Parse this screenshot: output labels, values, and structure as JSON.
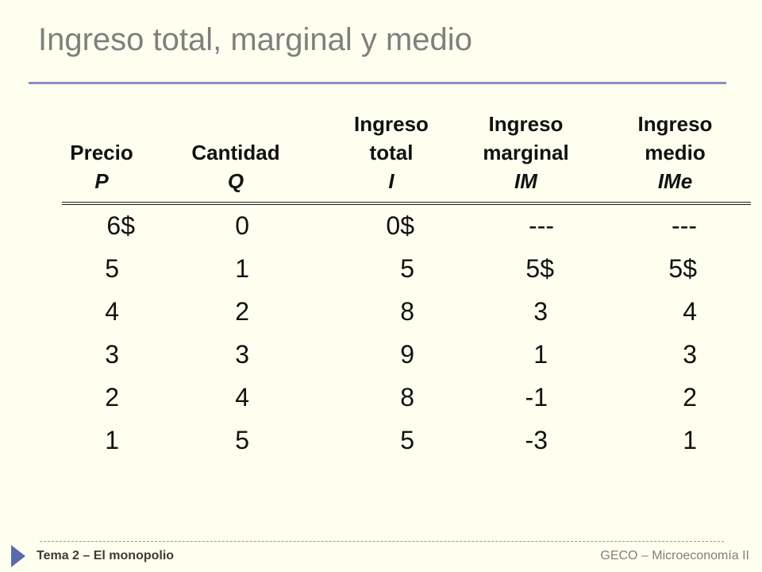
{
  "slide": {
    "title": "Ingreso total, marginal y medio",
    "footer_left": "Tema 2 – El monopolio",
    "footer_right": "GECO – Microeconomía II"
  },
  "table": {
    "headers": [
      {
        "line1": "",
        "line2": "Precio",
        "symbol": "P"
      },
      {
        "line1": "",
        "line2": "Cantidad",
        "symbol": "Q"
      },
      {
        "line1": "Ingreso",
        "line2": "total",
        "symbol": "I"
      },
      {
        "line1": "Ingreso",
        "line2": "marginal",
        "symbol": "IM"
      },
      {
        "line1": "Ingreso",
        "line2": "medio",
        "symbol": "IMe"
      }
    ],
    "rows": [
      [
        "6$",
        "0",
        "0$",
        "---",
        "---"
      ],
      [
        "5",
        "1",
        "5",
        "5$",
        "5$"
      ],
      [
        "4",
        "2",
        "8",
        "3",
        "4"
      ],
      [
        "3",
        "3",
        "9",
        "1",
        "3"
      ],
      [
        "2",
        "4",
        "8",
        "-1",
        "2"
      ],
      [
        "1",
        "5",
        "5",
        "-3",
        "1"
      ]
    ]
  },
  "colors": {
    "background": "#fffff0",
    "title": "#7f7f7f",
    "accent": "#8a8fc4",
    "footer_triangle": "#5a6ab0"
  }
}
